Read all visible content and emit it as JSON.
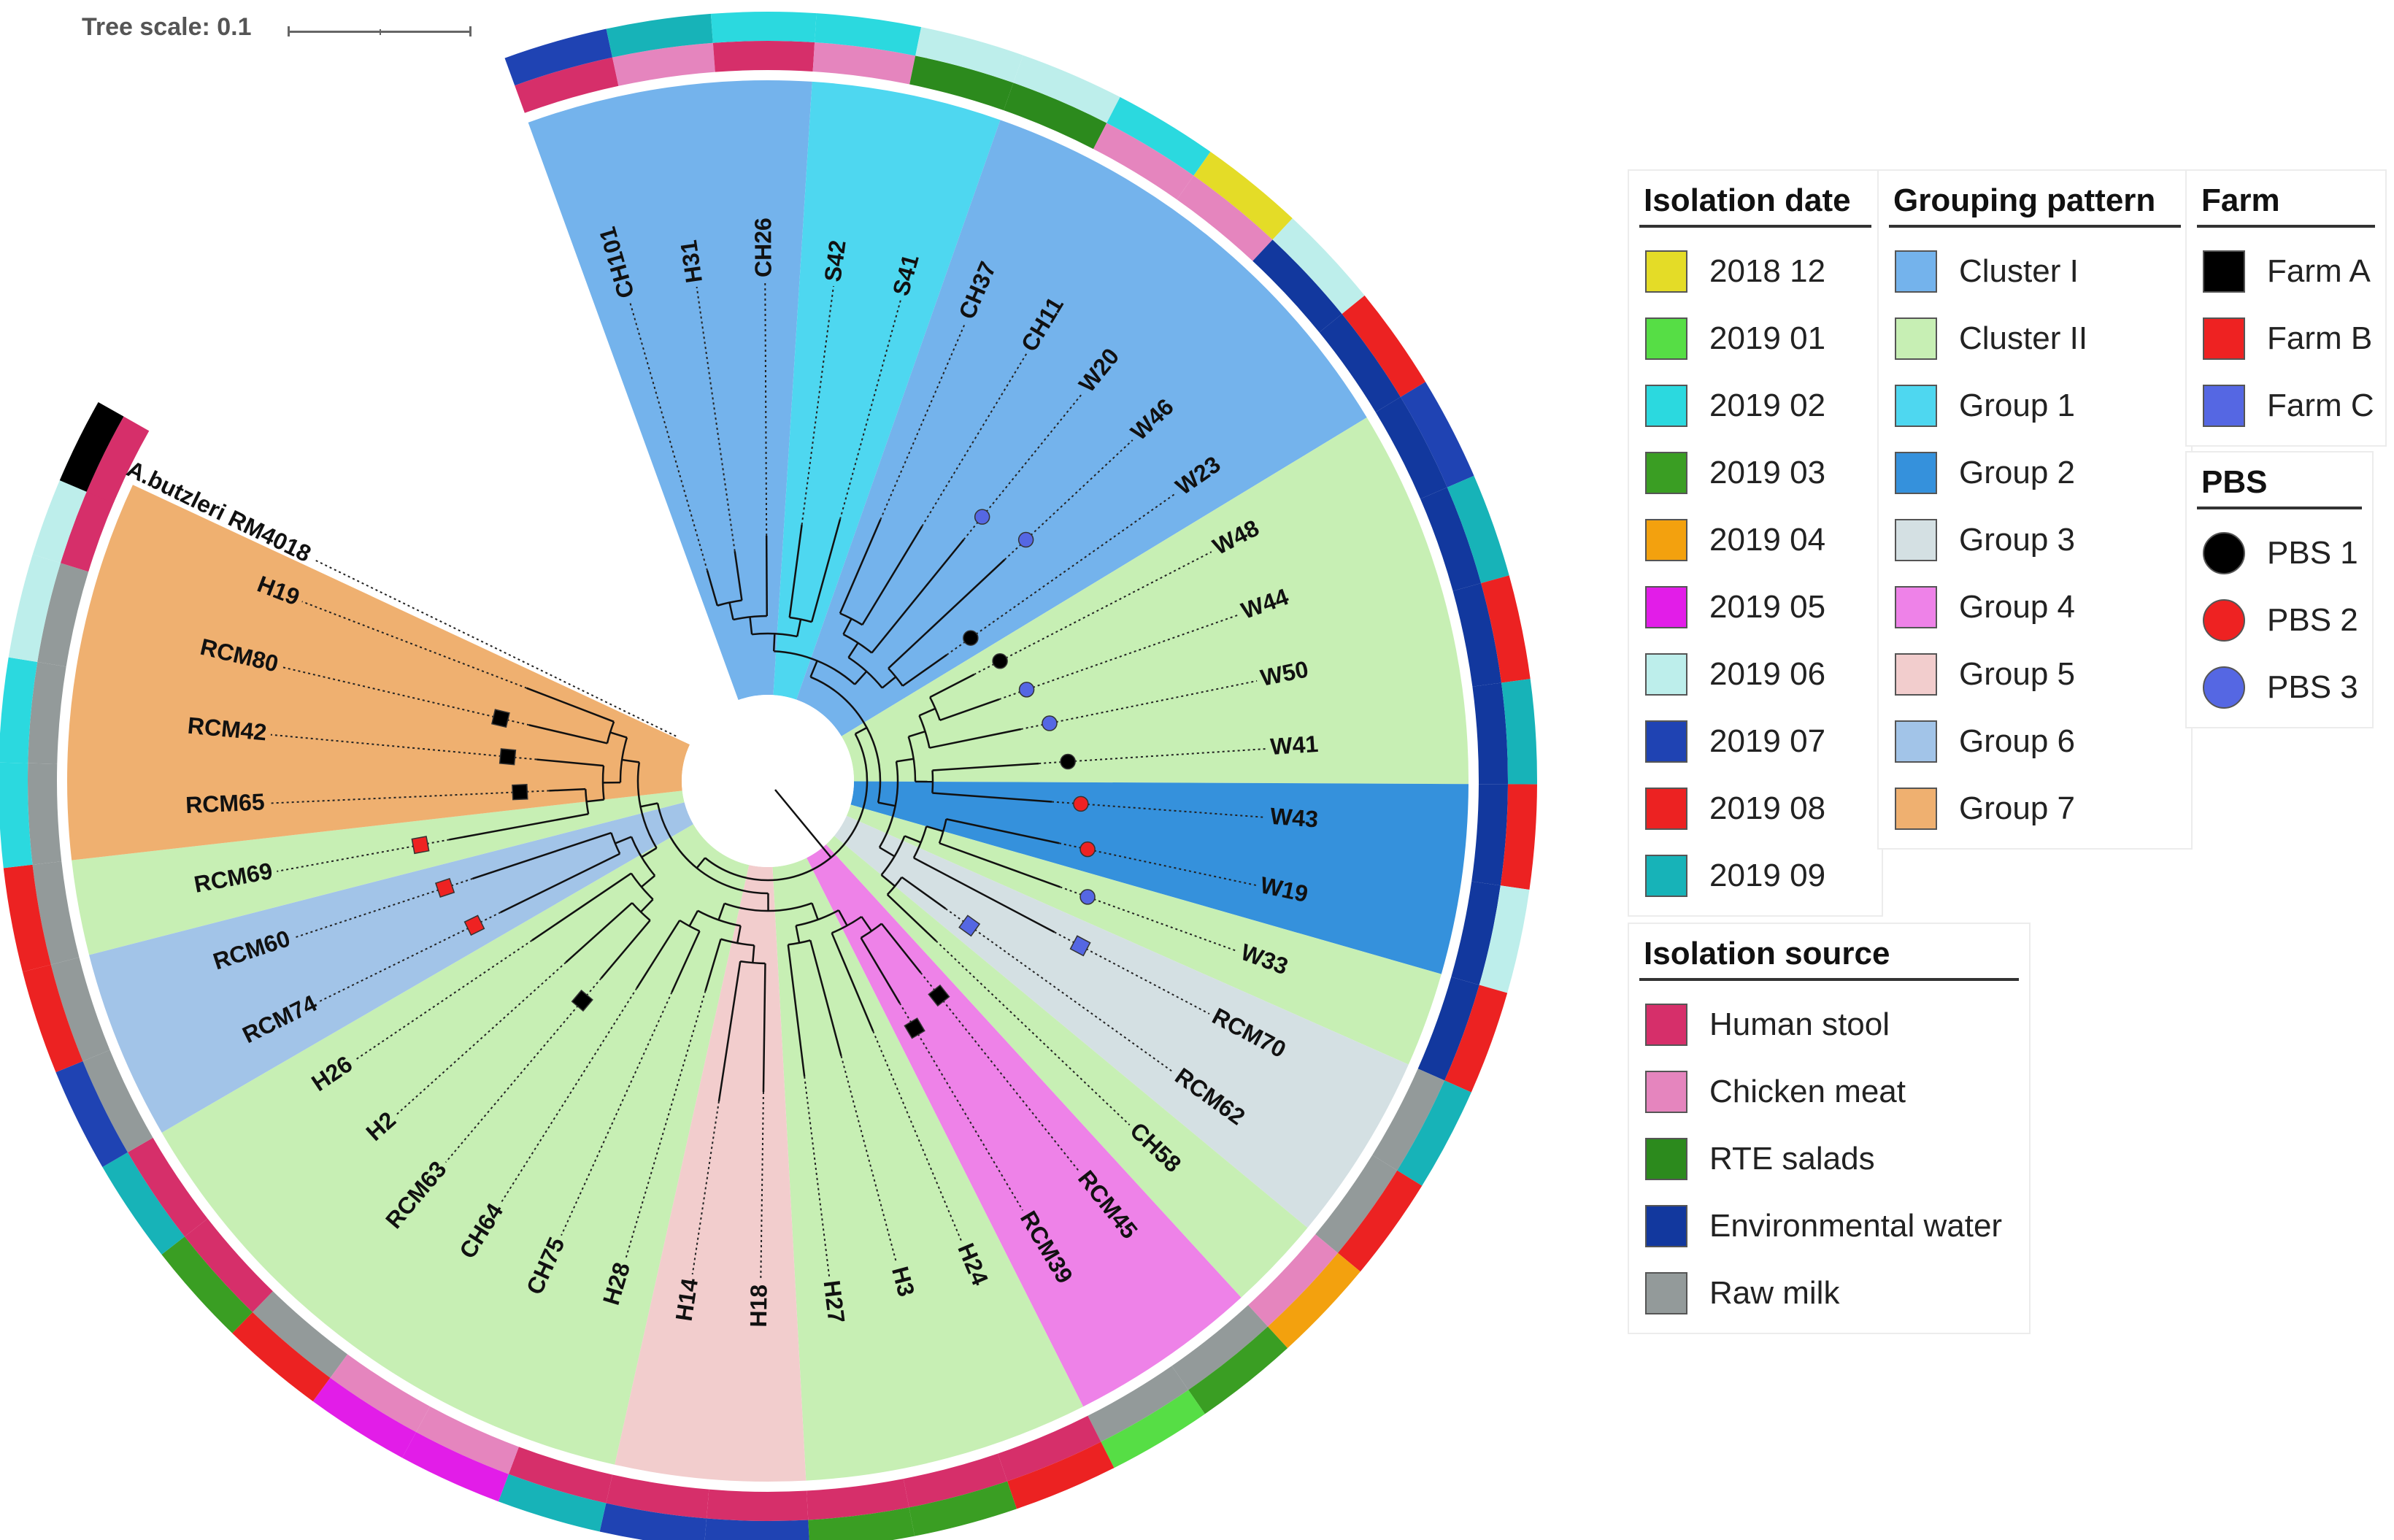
{
  "scale": {
    "label": "Tree scale: 0.1"
  },
  "tree": {
    "root_label": "A.butzleri RM4018",
    "groups": [
      {
        "name": "Cluster I",
        "color": "#74b3ec"
      },
      {
        "name": "Cluster II",
        "color": "#c7efb4"
      },
      {
        "name": "Group 1",
        "color": "#4ed7f0"
      },
      {
        "name": "Group 2",
        "color": "#3591dc"
      },
      {
        "name": "Group 3",
        "color": "#d4e0e3"
      },
      {
        "name": "Group 4",
        "color": "#ee82e8"
      },
      {
        "name": "Group 5",
        "color": "#f2cdcd"
      },
      {
        "name": "Group 6",
        "color": "#a2c4e8"
      },
      {
        "name": "Group 7",
        "color": "#efb070"
      }
    ],
    "leaves": [
      {
        "label": "CH101",
        "source": "Human stool",
        "date": "2019 07",
        "group": "Cluster I",
        "mark": null
      },
      {
        "label": "H31",
        "source": "Chicken meat",
        "date": "2019 09",
        "group": "Cluster I",
        "mark": null
      },
      {
        "label": "CH26",
        "source": "Human stool",
        "date": "2019 02",
        "group": "Cluster I",
        "mark": null
      },
      {
        "label": "S42",
        "source": "Chicken meat",
        "date": "2019 02",
        "group": "Group 1",
        "mark": null
      },
      {
        "label": "S41",
        "source": "RTE salads",
        "date": "2019 06",
        "group": "Group 1",
        "mark": null
      },
      {
        "label": "CH37",
        "source": "RTE salads",
        "date": "2019 06",
        "group": "Cluster I",
        "mark": null
      },
      {
        "label": "CH11",
        "source": "Chicken meat",
        "date": "2019 02",
        "group": "Cluster I",
        "mark": null
      },
      {
        "label": "W20",
        "source": "Chicken meat",
        "date": "2018 12",
        "group": "Cluster I",
        "mark": {
          "farm": null,
          "pbs": "PBS 3"
        }
      },
      {
        "label": "W46",
        "source": "Environmental water",
        "date": "2019 06",
        "group": "Cluster I",
        "mark": {
          "farm": null,
          "pbs": "PBS 3"
        }
      },
      {
        "label": "W23",
        "source": "Environmental water",
        "date": "2019 08",
        "group": "Cluster I",
        "mark": {
          "farm": null,
          "pbs": "PBS 1"
        }
      },
      {
        "label": "W48",
        "source": "Environmental water",
        "date": "2019 07",
        "group": "Cluster II",
        "mark": {
          "farm": null,
          "pbs": "PBS 1"
        }
      },
      {
        "label": "W44",
        "source": "Environmental water",
        "date": "2019 09",
        "group": "Cluster II",
        "mark": {
          "farm": null,
          "pbs": "PBS 3"
        }
      },
      {
        "label": "W50",
        "source": "Environmental water",
        "date": "2019 08",
        "group": "Cluster II",
        "mark": {
          "farm": null,
          "pbs": "PBS 3"
        }
      },
      {
        "label": "W41",
        "source": "Environmental water",
        "date": "2019 09",
        "group": "Cluster II",
        "mark": {
          "farm": null,
          "pbs": "PBS 1"
        }
      },
      {
        "label": "W43",
        "source": "Environmental water",
        "date": "2019 08",
        "group": "Group 2",
        "mark": {
          "farm": null,
          "pbs": "PBS 2"
        }
      },
      {
        "label": "W19",
        "source": "Environmental water",
        "date": "2019 06",
        "group": "Group 2",
        "mark": {
          "farm": null,
          "pbs": "PBS 2"
        }
      },
      {
        "label": "W33",
        "source": "Environmental water",
        "date": "2019 08",
        "group": "Cluster II",
        "mark": {
          "farm": null,
          "pbs": "PBS 3"
        }
      },
      {
        "label": "RCM70",
        "source": "Raw milk",
        "date": "2019 09",
        "group": "Group 3",
        "mark": {
          "farm": "Farm C",
          "pbs": null
        }
      },
      {
        "label": "RCM62",
        "source": "Raw milk",
        "date": "2019 08",
        "group": "Group 3",
        "mark": {
          "farm": "Farm C",
          "pbs": null
        }
      },
      {
        "label": "CH58",
        "source": "Chicken meat",
        "date": "2019 04",
        "group": "Cluster II",
        "mark": null
      },
      {
        "label": "RCM45",
        "source": "Raw milk",
        "date": "2019 03",
        "group": "Group 4",
        "mark": {
          "farm": "Farm A",
          "pbs": null
        }
      },
      {
        "label": "RCM39",
        "source": "Raw milk",
        "date": "2019 01",
        "group": "Group 4",
        "mark": {
          "farm": "Farm A",
          "pbs": null
        }
      },
      {
        "label": "H24",
        "source": "Human stool",
        "date": "2019 08",
        "group": "Cluster II",
        "mark": null
      },
      {
        "label": "H3",
        "source": "Human stool",
        "date": "2019 03",
        "group": "Cluster II",
        "mark": null
      },
      {
        "label": "H27",
        "source": "Human stool",
        "date": "2019 03",
        "group": "Cluster II",
        "mark": null
      },
      {
        "label": "H18",
        "source": "Human stool",
        "date": "2019 07",
        "group": "Group 5",
        "mark": null
      },
      {
        "label": "H14",
        "source": "Human stool",
        "date": "2019 07",
        "group": "Group 5",
        "mark": null
      },
      {
        "label": "H28",
        "source": "Human stool",
        "date": "2019 09",
        "group": "Cluster II",
        "mark": null
      },
      {
        "label": "CH75",
        "source": "Chicken meat",
        "date": "2019 05",
        "group": "Cluster II",
        "mark": null
      },
      {
        "label": "CH64",
        "source": "Chicken meat",
        "date": "2019 05",
        "group": "Cluster II",
        "mark": null
      },
      {
        "label": "RCM63",
        "source": "Raw milk",
        "date": "2019 08",
        "group": "Cluster II",
        "mark": {
          "farm": "Farm A",
          "pbs": null
        }
      },
      {
        "label": "H2",
        "source": "Human stool",
        "date": "2019 03",
        "group": "Cluster II",
        "mark": null
      },
      {
        "label": "H26",
        "source": "Human stool",
        "date": "2019 09",
        "group": "Cluster II",
        "mark": null
      },
      {
        "label": "RCM74",
        "source": "Raw milk",
        "date": "2019 07",
        "group": "Group 6",
        "mark": {
          "farm": "Farm B",
          "pbs": null
        }
      },
      {
        "label": "RCM60",
        "source": "Raw milk",
        "date": "2019 08",
        "group": "Group 6",
        "mark": {
          "farm": "Farm B",
          "pbs": null
        }
      },
      {
        "label": "RCM69",
        "source": "Raw milk",
        "date": "2019 08",
        "group": "Cluster II",
        "mark": {
          "farm": "Farm B",
          "pbs": null
        }
      },
      {
        "label": "RCM65",
        "source": "Raw milk",
        "date": "2019 02",
        "group": "Group 7",
        "mark": {
          "farm": "Farm A",
          "pbs": null
        }
      },
      {
        "label": "RCM42",
        "source": "Raw milk",
        "date": "2019 02",
        "group": "Group 7",
        "mark": {
          "farm": "Farm A",
          "pbs": null
        }
      },
      {
        "label": "RCM80",
        "source": "Raw milk",
        "date": "2019 06",
        "group": "Group 7",
        "mark": {
          "farm": "Farm A",
          "pbs": null
        }
      },
      {
        "label": "H19",
        "source": "Human stool",
        "date": "2019 06",
        "group": "Group 7",
        "mark": null
      }
    ],
    "root_leaf": {
      "source": "Human stool",
      "farm": "Farm A"
    }
  },
  "legends": {
    "isolation_date": {
      "title": "Isolation date",
      "items": [
        {
          "label": "2018 12",
          "color": "#e4dc27"
        },
        {
          "label": "2019 01",
          "color": "#56de45"
        },
        {
          "label": "2019 02",
          "color": "#2bd9df"
        },
        {
          "label": "2019 03",
          "color": "#3a9e23"
        },
        {
          "label": "2019 04",
          "color": "#f3a10e"
        },
        {
          "label": "2019 05",
          "color": "#e21de8"
        },
        {
          "label": "2019 06",
          "color": "#bdeeeb"
        },
        {
          "label": "2019 07",
          "color": "#1f43b3"
        },
        {
          "label": "2019 08",
          "color": "#ec2222"
        },
        {
          "label": "2019 09",
          "color": "#17b3b8"
        }
      ]
    },
    "grouping_pattern": {
      "title": "Grouping pattern",
      "items": [
        {
          "label": "Cluster I",
          "color": "#74b3ec"
        },
        {
          "label": "Cluster II",
          "color": "#c7efb4"
        },
        {
          "label": "Group 1",
          "color": "#4ed7f0"
        },
        {
          "label": "Group 2",
          "color": "#3591dc"
        },
        {
          "label": "Group 3",
          "color": "#d4e0e3"
        },
        {
          "label": "Group 4",
          "color": "#ee82e8"
        },
        {
          "label": "Group 5",
          "color": "#f2cdcd"
        },
        {
          "label": "Group 6",
          "color": "#a2c4e8"
        },
        {
          "label": "Group 7",
          "color": "#efb070"
        }
      ]
    },
    "farm": {
      "title": "Farm",
      "items": [
        {
          "label": "Farm A",
          "color": "#000000"
        },
        {
          "label": "Farm B",
          "color": "#ee2222"
        },
        {
          "label": "Farm C",
          "color": "#5567e3"
        }
      ]
    },
    "pbs": {
      "title": "PBS",
      "items": [
        {
          "label": "PBS 1",
          "color": "#000000"
        },
        {
          "label": "PBS 2",
          "color": "#ee2222"
        },
        {
          "label": "PBS 3",
          "color": "#5567e3"
        }
      ]
    },
    "isolation_source": {
      "title": "Isolation source",
      "items": [
        {
          "label": "Human stool",
          "color": "#d62f6a"
        },
        {
          "label": "Chicken meat",
          "color": "#e585be"
        },
        {
          "label": "RTE salads",
          "color": "#2c8a1d"
        },
        {
          "label": "Environmental water",
          "color": "#12389e"
        },
        {
          "label": "Raw milk",
          "color": "#939a9a"
        }
      ]
    }
  }
}
